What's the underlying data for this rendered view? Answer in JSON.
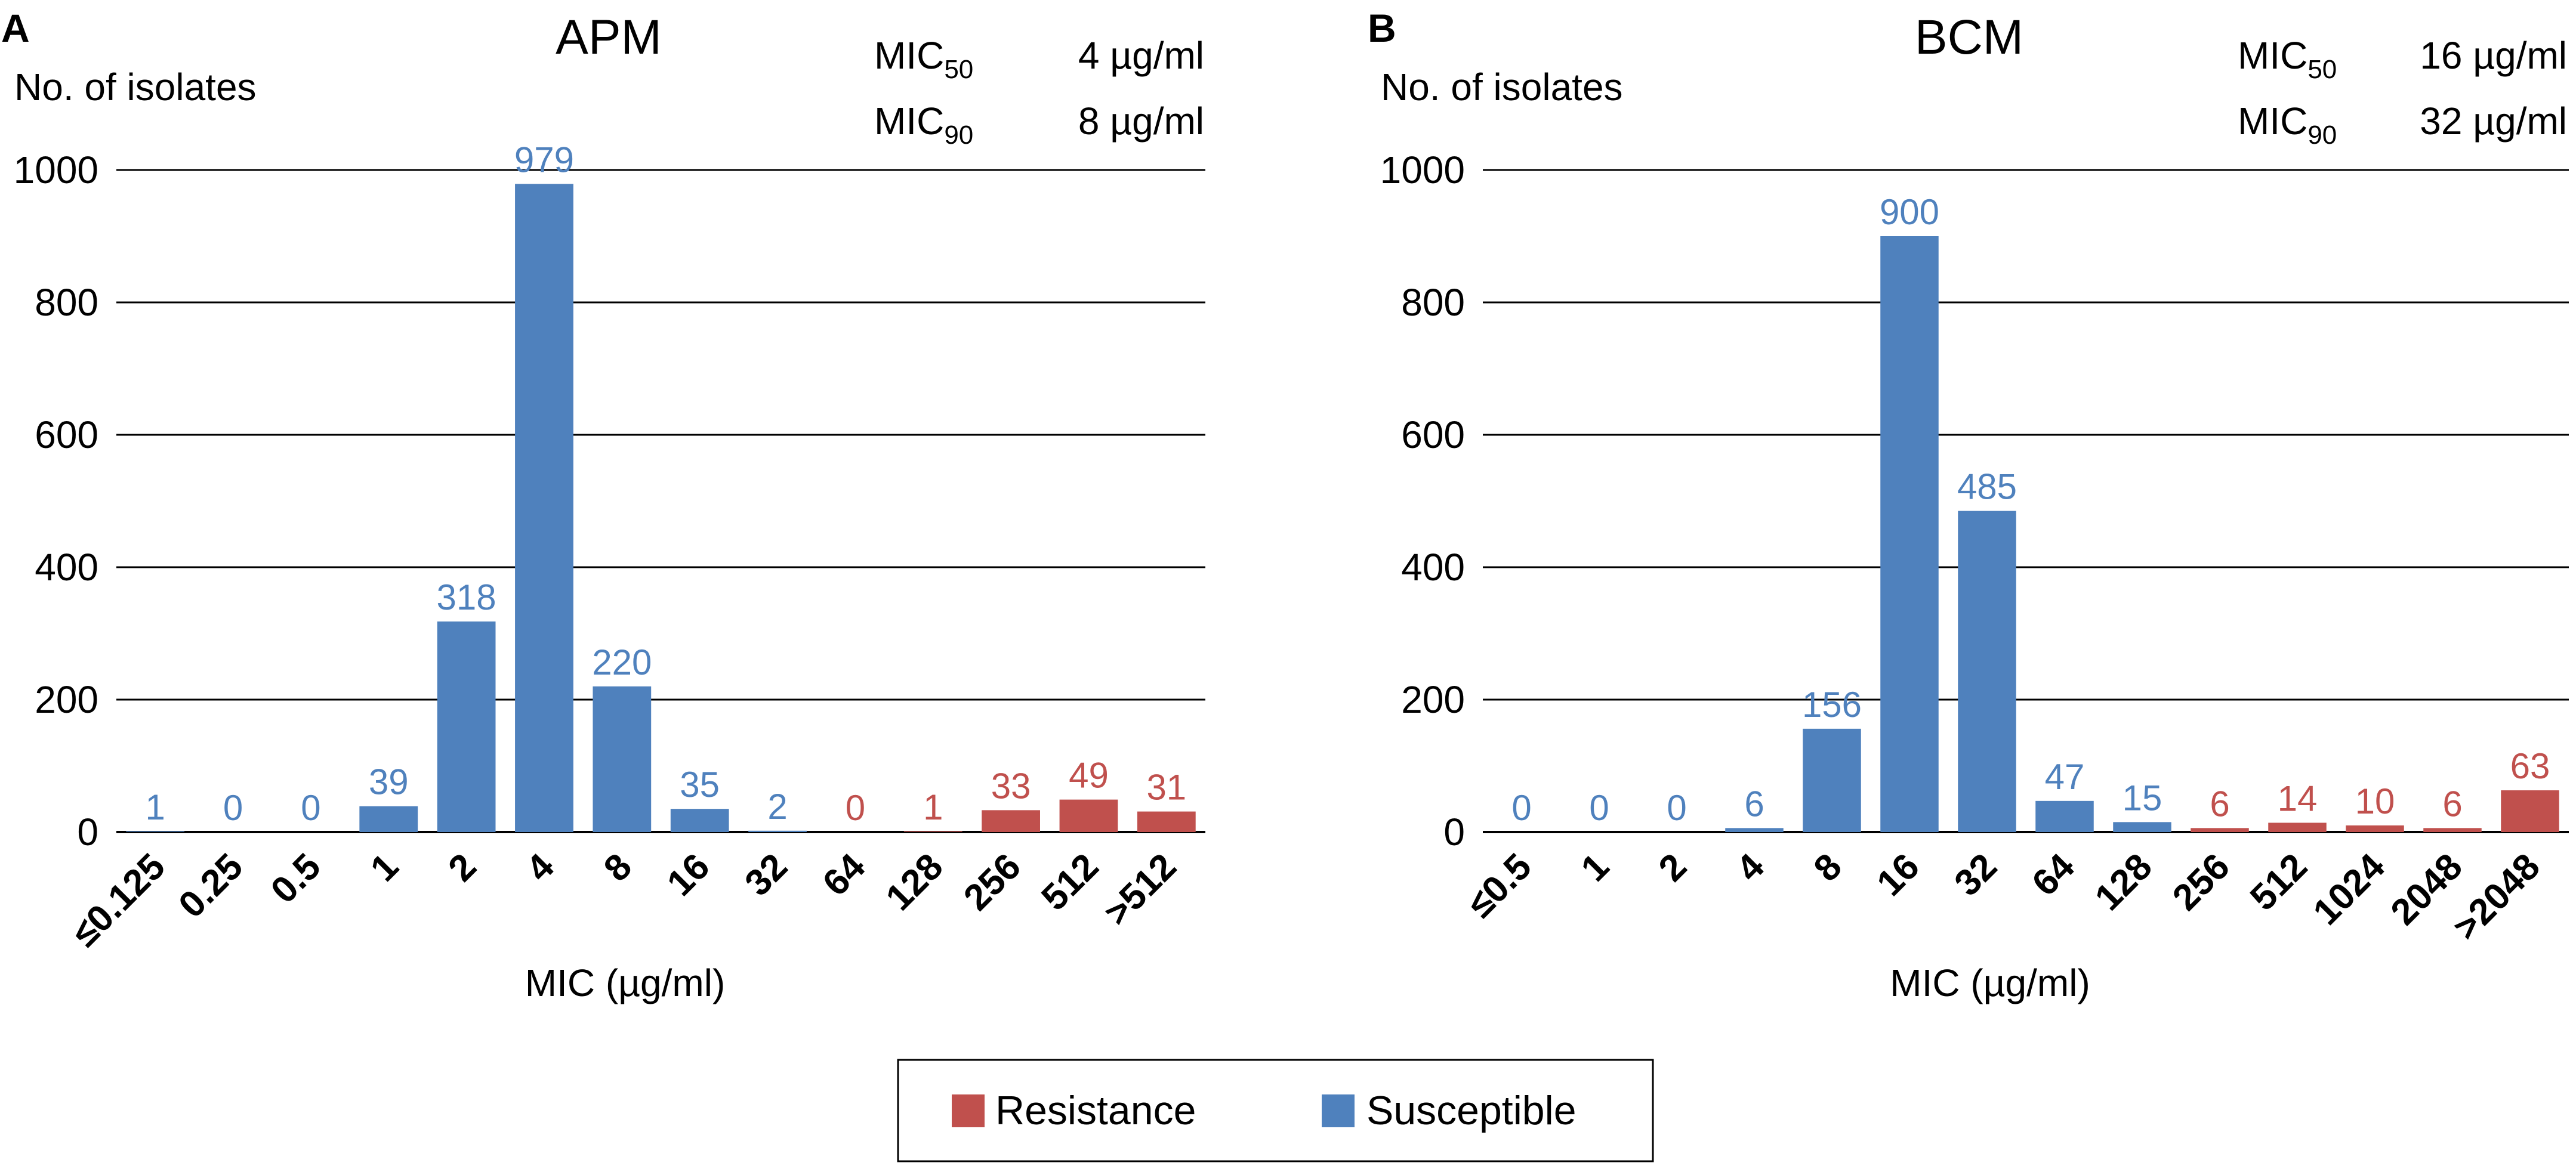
{
  "colors": {
    "susceptible": "#4f81bd",
    "resistance": "#c0504d",
    "text": "#000000"
  },
  "legend": [
    {
      "label": "Resistance",
      "series": "resistance"
    },
    {
      "label": "Susceptible",
      "series": "susceptible"
    }
  ],
  "chart_data": [
    {
      "type": "bar",
      "panel": "A",
      "title": "APM",
      "ylabel": "No. of isolates",
      "xlabel": "MIC (µg/ml)",
      "ylim": [
        0,
        1000
      ],
      "yticks": [
        0,
        200,
        400,
        600,
        800,
        1000
      ],
      "grid": true,
      "mic": [
        {
          "label": "MIC",
          "sub": "50",
          "value": "4 µg/ml"
        },
        {
          "label": "MIC",
          "sub": "90",
          "value": "8 µg/ml"
        }
      ],
      "categories": [
        "≤0.125",
        "0.25",
        "0.5",
        "1",
        "2",
        "4",
        "8",
        "16",
        "32",
        "64",
        "128",
        "256",
        "512",
        ">512"
      ],
      "values": [
        1,
        0,
        0,
        39,
        318,
        979,
        220,
        35,
        2,
        0,
        1,
        33,
        49,
        31
      ],
      "classes": [
        "susceptible",
        "susceptible",
        "susceptible",
        "susceptible",
        "susceptible",
        "susceptible",
        "susceptible",
        "susceptible",
        "susceptible",
        "resistance",
        "resistance",
        "resistance",
        "resistance",
        "resistance"
      ]
    },
    {
      "type": "bar",
      "panel": "B",
      "title": "BCM",
      "ylabel": "No. of isolates",
      "xlabel": "MIC (µg/ml)",
      "ylim": [
        0,
        1000
      ],
      "yticks": [
        0,
        200,
        400,
        600,
        800,
        1000
      ],
      "grid": true,
      "mic": [
        {
          "label": "MIC",
          "sub": "50",
          "value": "16 µg/ml"
        },
        {
          "label": "MIC",
          "sub": "90",
          "value": "32 µg/ml"
        }
      ],
      "categories": [
        "≤0.5",
        "1",
        "2",
        "4",
        "8",
        "16",
        "32",
        "64",
        "128",
        "256",
        "512",
        "1024",
        "2048",
        ">2048"
      ],
      "values": [
        0,
        0,
        0,
        6,
        156,
        900,
        485,
        47,
        15,
        6,
        14,
        10,
        6,
        63
      ],
      "classes": [
        "susceptible",
        "susceptible",
        "susceptible",
        "susceptible",
        "susceptible",
        "susceptible",
        "susceptible",
        "susceptible",
        "susceptible",
        "resistance",
        "resistance",
        "resistance",
        "resistance",
        "resistance"
      ]
    }
  ]
}
